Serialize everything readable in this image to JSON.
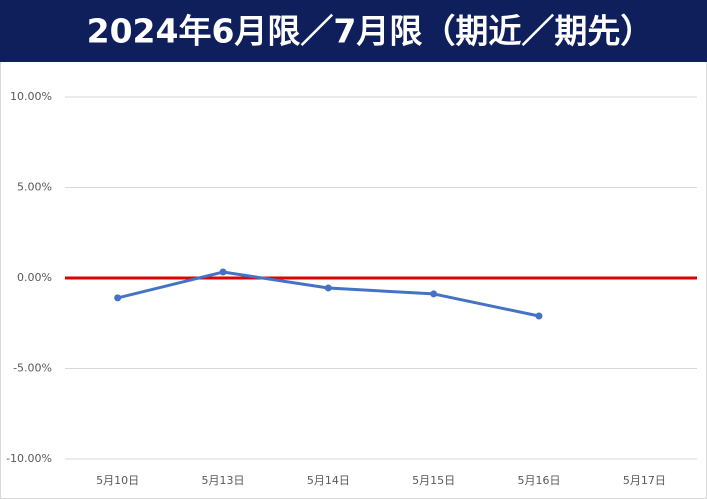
{
  "chart_data": {
    "type": "line",
    "title": "2024年6月限／7月限（期近／期先）",
    "categories": [
      "5月10日",
      "5月13日",
      "5月14日",
      "5月15日",
      "5月16日",
      "5月17日"
    ],
    "values": [
      -1.1,
      0.33,
      -0.55,
      -0.88,
      -2.1,
      null
    ],
    "color": "#4472c4",
    "ylim": [
      -10,
      10
    ],
    "yticks": [
      {
        "value": -10,
        "label": "-10.00%"
      },
      {
        "value": -5,
        "label": "-5.00%"
      },
      {
        "value": 0,
        "label": "0.00%"
      },
      {
        "value": 5,
        "label": "5.00%"
      },
      {
        "value": 10,
        "label": "10.00%"
      }
    ],
    "grid": true,
    "hline": {
      "value": 0,
      "color": "#e00000"
    }
  }
}
